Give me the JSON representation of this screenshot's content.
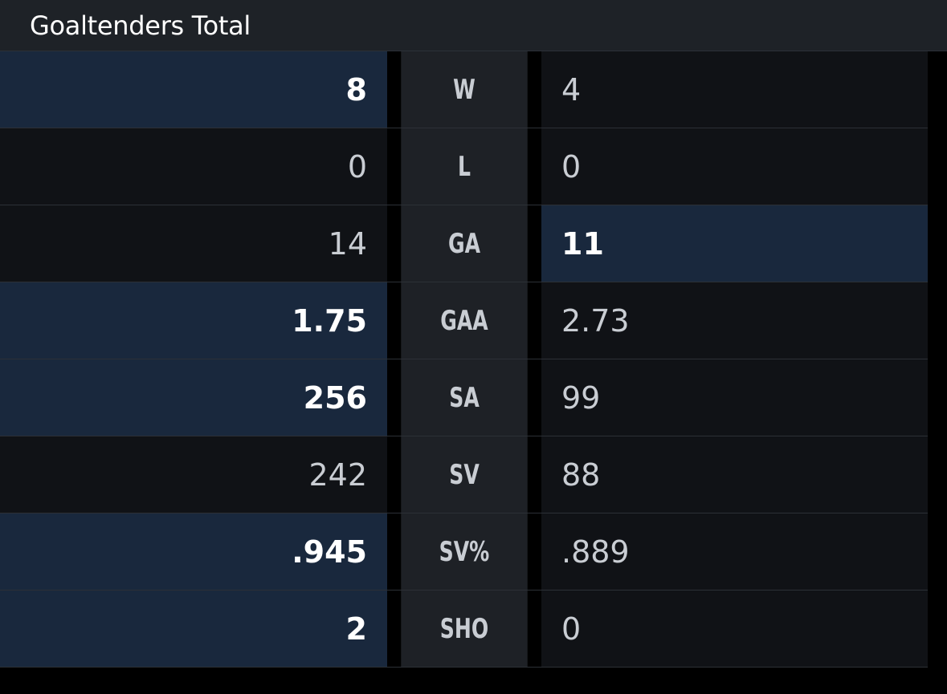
{
  "header": {
    "title": "Goaltenders Total"
  },
  "rows": [
    {
      "left": "8",
      "label": "W",
      "right": "4",
      "leader": "left"
    },
    {
      "left": "0",
      "label": "L",
      "right": "0",
      "leader": "none"
    },
    {
      "left": "14",
      "label": "GA",
      "right": "11",
      "leader": "right"
    },
    {
      "left": "1.75",
      "label": "GAA",
      "right": "2.73",
      "leader": "left"
    },
    {
      "left": "256",
      "label": "SA",
      "right": "99",
      "leader": "left"
    },
    {
      "left": "242",
      "label": "SV",
      "right": "88",
      "leader": "none"
    },
    {
      "left": ".945",
      "label": "SV%",
      "right": ".889",
      "leader": "left"
    },
    {
      "left": "2",
      "label": "SHO",
      "right": "0",
      "leader": "left"
    }
  ],
  "colors": {
    "highlight_bg": "#19283d",
    "cell_bg": "#101216",
    "label_bg": "#1e2126",
    "header_bg": "#1e2227"
  }
}
